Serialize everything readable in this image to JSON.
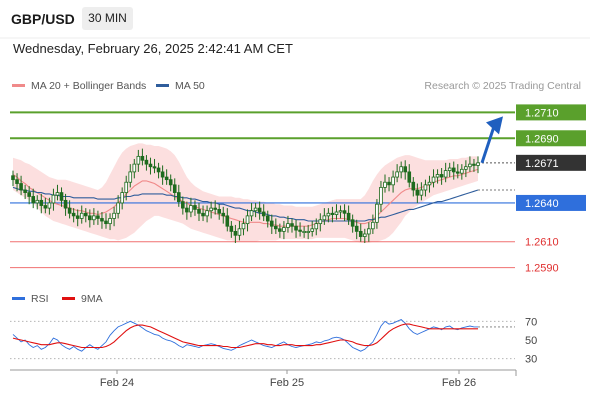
{
  "header": {
    "pair": "GBP/USD",
    "timeframe": "30 MIN",
    "datetime": "Wednesday, February 26, 2025 2:42:41 AM CET"
  },
  "legend": {
    "ma20": "MA 20 + Bollinger Bands",
    "ma50": "MA 50",
    "credit": "Research © 2025 Trading Central",
    "rsi": "RSI",
    "rsi_ma": "9MA"
  },
  "colors": {
    "ma20": "#f08a8a",
    "ma50": "#2f5d9c",
    "band_fill": "#fbd9d9",
    "candle": "#1e6b1e",
    "resistance": "#5aa02c",
    "pivot": "#2f6fdc",
    "support": "#f07070",
    "last_price": "#333333",
    "rsi": "#2f6fdc",
    "rsi_ma": "#e01010"
  },
  "chart_data": [
    {
      "type": "candlestick",
      "x_labels": [
        "Feb 24",
        "Feb 25",
        "Feb 26"
      ],
      "ylim": [
        1.2575,
        1.2725
      ],
      "levels": [
        {
          "label": "1.2710",
          "value": 1.271,
          "kind": "resistance"
        },
        {
          "label": "1.2690",
          "value": 1.269,
          "kind": "resistance"
        },
        {
          "label": "1.2671",
          "value": 1.2671,
          "kind": "last"
        },
        {
          "label": "1.2640",
          "value": 1.264,
          "kind": "pivot"
        },
        {
          "label": "1.2610",
          "value": 1.261,
          "kind": "support"
        },
        {
          "label": "1.2590",
          "value": 1.259,
          "kind": "support"
        }
      ],
      "close_series": [
        1.2658,
        1.2655,
        1.265,
        1.2648,
        1.2645,
        1.264,
        1.2642,
        1.2638,
        1.2636,
        1.264,
        1.2646,
        1.2648,
        1.2642,
        1.2636,
        1.2632,
        1.263,
        1.2628,
        1.2632,
        1.263,
        1.2627,
        1.263,
        1.2628,
        1.2626,
        1.2624,
        1.2628,
        1.2632,
        1.264,
        1.2648,
        1.2656,
        1.2664,
        1.267,
        1.2676,
        1.2673,
        1.267,
        1.2668,
        1.2667,
        1.2664,
        1.266,
        1.2658,
        1.2654,
        1.2648,
        1.2641,
        1.2636,
        1.2633,
        1.2638,
        1.2635,
        1.2632,
        1.263,
        1.2634,
        1.2636,
        1.2635,
        1.2632,
        1.263,
        1.2622,
        1.2618,
        1.2615,
        1.262,
        1.2624,
        1.263,
        1.2634,
        1.2636,
        1.2633,
        1.263,
        1.2626,
        1.2622,
        1.262,
        1.2618,
        1.2621,
        1.2624,
        1.2622,
        1.2619,
        1.2618,
        1.2618,
        1.2618,
        1.262,
        1.2624,
        1.2627,
        1.263,
        1.2632,
        1.2631,
        1.2633,
        1.2634,
        1.2632,
        1.2627,
        1.2622,
        1.2618,
        1.2614,
        1.2616,
        1.262,
        1.2625,
        1.2639,
        1.2652,
        1.2656,
        1.2654,
        1.266,
        1.2664,
        1.2668,
        1.2664,
        1.2656,
        1.265,
        1.2646,
        1.265,
        1.2654,
        1.2656,
        1.266,
        1.2662,
        1.266,
        1.2665,
        1.2667,
        1.2664,
        1.2663,
        1.2666,
        1.2668,
        1.267,
        1.2669,
        1.2671
      ],
      "ma20": [
        1.2662,
        1.266,
        1.2657,
        1.2655,
        1.2652,
        1.265,
        1.2648,
        1.2646,
        1.2644,
        1.2642,
        1.264,
        1.2639,
        1.2638,
        1.2637,
        1.2636,
        1.2635,
        1.2634,
        1.2634,
        1.2633,
        1.2632,
        1.2632,
        1.2631,
        1.2632,
        1.2633,
        1.2635,
        1.2637,
        1.264,
        1.2643,
        1.2647,
        1.265,
        1.2653,
        1.2655,
        1.2657,
        1.2657,
        1.2656,
        1.2655,
        1.2653,
        1.2651,
        1.2649,
        1.2647,
        1.2645,
        1.2643,
        1.2641,
        1.264,
        1.2638,
        1.2637,
        1.2636,
        1.2635,
        1.2634,
        1.2633,
        1.2632,
        1.2631,
        1.263,
        1.2629,
        1.2628,
        1.2627,
        1.2626,
        1.2625,
        1.2625,
        1.2625,
        1.2625,
        1.2625,
        1.2624,
        1.2624,
        1.2623,
        1.2623,
        1.2622,
        1.2622,
        1.2622,
        1.2622,
        1.2622,
        1.2622,
        1.2622,
        1.2622,
        1.2623,
        1.2624,
        1.2625,
        1.2626,
        1.2627,
        1.2628,
        1.2628,
        1.2628,
        1.2628,
        1.2627,
        1.2626,
        1.2625,
        1.2624,
        1.2624,
        1.2625,
        1.2627,
        1.263,
        1.2633,
        1.2636,
        1.2639,
        1.2642,
        1.2645,
        1.2648,
        1.265,
        1.2651,
        1.2651,
        1.2651,
        1.2652,
        1.2653,
        1.2654,
        1.2656,
        1.2657,
        1.2658,
        1.2659,
        1.266,
        1.2661,
        1.2661,
        1.2662,
        1.2663,
        1.2664,
        1.2665,
        1.2666
      ],
      "band_upper": [
        1.2675,
        1.2674,
        1.2673,
        1.2671,
        1.267,
        1.2668,
        1.2666,
        1.2664,
        1.2662,
        1.266,
        1.2659,
        1.2658,
        1.2658,
        1.2658,
        1.2657,
        1.2656,
        1.2655,
        1.2654,
        1.2653,
        1.2652,
        1.2651,
        1.265,
        1.2652,
        1.2656,
        1.2662,
        1.2668,
        1.2674,
        1.2679,
        1.2682,
        1.2684,
        1.2685,
        1.2686,
        1.2686,
        1.2685,
        1.2685,
        1.2684,
        1.2684,
        1.2683,
        1.2682,
        1.268,
        1.2677,
        1.2672,
        1.2666,
        1.266,
        1.2656,
        1.2653,
        1.2651,
        1.2649,
        1.2648,
        1.2647,
        1.2646,
        1.2645,
        1.2645,
        1.2645,
        1.2645,
        1.2644,
        1.2644,
        1.2643,
        1.2643,
        1.2642,
        1.2642,
        1.2641,
        1.2641,
        1.264,
        1.264,
        1.2639,
        1.2639,
        1.2638,
        1.2638,
        1.2638,
        1.2637,
        1.2637,
        1.2637,
        1.2637,
        1.2637,
        1.2638,
        1.2639,
        1.264,
        1.2641,
        1.2642,
        1.2643,
        1.2643,
        1.2643,
        1.2643,
        1.2643,
        1.2643,
        1.2643,
        1.2646,
        1.2651,
        1.2657,
        1.2662,
        1.2666,
        1.2669,
        1.2671,
        1.2673,
        1.2675,
        1.2676,
        1.2677,
        1.2677,
        1.2676,
        1.2675,
        1.2674,
        1.2673,
        1.2673,
        1.2673,
        1.2673,
        1.2673,
        1.2673,
        1.2674,
        1.2674,
        1.2674,
        1.2675,
        1.2675,
        1.2676,
        1.2676,
        1.2676
      ],
      "band_lower": [
        1.265,
        1.2648,
        1.2646,
        1.2644,
        1.2642,
        1.264,
        1.2636,
        1.2633,
        1.263,
        1.2628,
        1.2626,
        1.2625,
        1.2624,
        1.2623,
        1.2622,
        1.2621,
        1.262,
        1.2619,
        1.2618,
        1.2617,
        1.2616,
        1.2615,
        1.2614,
        1.2613,
        1.2612,
        1.2612,
        1.2611,
        1.2612,
        1.2613,
        1.2615,
        1.2617,
        1.262,
        1.2623,
        1.2626,
        1.2628,
        1.263,
        1.263,
        1.2629,
        1.2628,
        1.2627,
        1.2626,
        1.2625,
        1.2624,
        1.2622,
        1.262,
        1.2619,
        1.2618,
        1.2617,
        1.2616,
        1.2615,
        1.2614,
        1.2613,
        1.2612,
        1.2611,
        1.2611,
        1.261,
        1.261,
        1.261,
        1.261,
        1.261,
        1.261,
        1.2611,
        1.2611,
        1.2611,
        1.2611,
        1.2611,
        1.2612,
        1.2612,
        1.2612,
        1.2612,
        1.2612,
        1.2612,
        1.2612,
        1.2612,
        1.2612,
        1.2613,
        1.2613,
        1.2613,
        1.2613,
        1.2613,
        1.2613,
        1.2613,
        1.2613,
        1.2612,
        1.2611,
        1.261,
        1.2609,
        1.2609,
        1.2609,
        1.261,
        1.261,
        1.2611,
        1.2612,
        1.2614,
        1.2617,
        1.2621,
        1.2625,
        1.263,
        1.2633,
        1.2636,
        1.2638,
        1.264,
        1.2642,
        1.2644,
        1.2646,
        1.2647,
        1.2648,
        1.2649,
        1.265,
        1.2651,
        1.2652,
        1.2653,
        1.2654,
        1.2655,
        1.2656,
        1.2657
      ],
      "ma50": [
        1.2652,
        1.2651,
        1.265,
        1.265,
        1.2649,
        1.2649,
        1.2648,
        1.2648,
        1.2647,
        1.2647,
        1.2646,
        1.2646,
        1.2645,
        1.2645,
        1.2645,
        1.2644,
        1.2644,
        1.2644,
        1.2644,
        1.2644,
        1.2644,
        1.2643,
        1.2643,
        1.2643,
        1.2643,
        1.2643,
        1.2644,
        1.2644,
        1.2645,
        1.2645,
        1.2646,
        1.2646,
        1.2647,
        1.2647,
        1.2647,
        1.2647,
        1.2647,
        1.2647,
        1.2646,
        1.2646,
        1.2645,
        1.2645,
        1.2644,
        1.2644,
        1.2643,
        1.2643,
        1.2642,
        1.2641,
        1.2641,
        1.264,
        1.264,
        1.2639,
        1.2639,
        1.2638,
        1.2637,
        1.2636,
        1.2636,
        1.2635,
        1.2634,
        1.2634,
        1.2633,
        1.2632,
        1.2632,
        1.2631,
        1.263,
        1.263,
        1.2629,
        1.2629,
        1.2628,
        1.2628,
        1.2627,
        1.2627,
        1.2627,
        1.2626,
        1.2626,
        1.2626,
        1.2626,
        1.2626,
        1.2626,
        1.2626,
        1.2626,
        1.2626,
        1.2626,
        1.2626,
        1.2626,
        1.2626,
        1.2626,
        1.2626,
        1.2627,
        1.2627,
        1.2628,
        1.2629,
        1.2629,
        1.263,
        1.2631,
        1.2632,
        1.2633,
        1.2634,
        1.2635,
        1.2635,
        1.2636,
        1.2637,
        1.2638,
        1.2639,
        1.264,
        1.2641,
        1.2641,
        1.2642,
        1.2643,
        1.2644,
        1.2645,
        1.2646,
        1.2647,
        1.2648,
        1.2649,
        1.265
      ]
    },
    {
      "type": "line",
      "ylim": [
        20,
        80
      ],
      "y_ticks": [
        70,
        50,
        30
      ],
      "rsi": [
        56,
        52,
        48,
        50,
        45,
        42,
        44,
        40,
        42,
        46,
        52,
        50,
        45,
        42,
        40,
        43,
        40,
        38,
        42,
        45,
        42,
        40,
        44,
        48,
        55,
        60,
        64,
        66,
        68,
        70,
        68,
        66,
        63,
        60,
        58,
        56,
        55,
        52,
        50,
        49,
        47,
        44,
        42,
        45,
        44,
        43,
        42,
        44,
        45,
        46,
        45,
        43,
        41,
        40,
        39,
        41,
        44,
        46,
        48,
        50,
        48,
        46,
        44,
        43,
        42,
        44,
        46,
        48,
        45,
        43,
        42,
        43,
        44,
        45,
        46,
        48,
        47,
        49,
        50,
        52,
        53,
        52,
        50,
        46,
        42,
        40,
        38,
        40,
        44,
        48,
        56,
        65,
        70,
        67,
        68,
        70,
        72,
        68,
        62,
        58,
        56,
        58,
        60,
        62,
        64,
        63,
        61,
        64,
        65,
        62,
        61,
        63,
        64,
        65,
        64,
        64
      ],
      "rsi_ma": [
        52,
        51,
        50,
        49,
        48,
        47,
        46,
        45,
        45,
        45,
        46,
        47,
        47,
        46,
        45,
        44,
        43,
        42,
        42,
        42,
        42,
        42,
        42,
        43,
        45,
        48,
        52,
        56,
        60,
        63,
        65,
        66,
        66,
        65,
        64,
        62,
        60,
        58,
        56,
        54,
        52,
        50,
        48,
        47,
        46,
        45,
        44,
        44,
        44,
        44,
        44,
        44,
        43,
        43,
        42,
        42,
        42,
        43,
        44,
        45,
        46,
        46,
        46,
        45,
        45,
        44,
        44,
        45,
        45,
        45,
        44,
        44,
        44,
        44,
        44,
        45,
        45,
        46,
        47,
        48,
        49,
        50,
        50,
        49,
        48,
        46,
        45,
        44,
        44,
        45,
        47,
        51,
        55,
        59,
        62,
        64,
        66,
        67,
        67,
        66,
        65,
        64,
        63,
        62,
        62,
        62,
        62,
        62,
        62,
        62,
        62,
        62,
        62,
        62,
        62,
        62
      ]
    }
  ]
}
